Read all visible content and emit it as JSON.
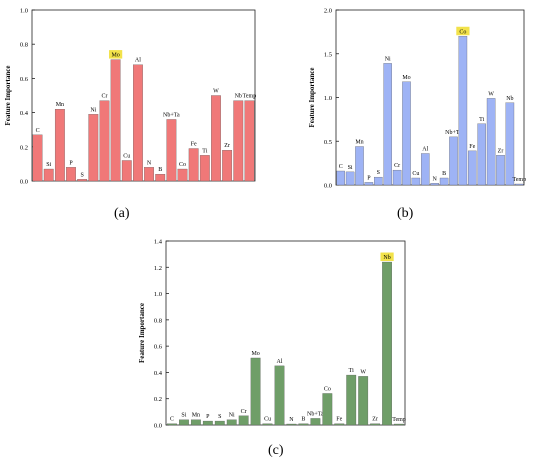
{
  "labels": {
    "a": "(a)",
    "b": "(b)",
    "c": "(c)"
  },
  "chart_data": [
    {
      "type": "bar",
      "panel": "a",
      "ylabel": "Feature Importance",
      "ylim": [
        0,
        1.0
      ],
      "yticks": [
        "0.0",
        "0.2",
        "0.4",
        "0.6",
        "0.8",
        "1.0"
      ],
      "bar_color": "#f07878",
      "highlight_color": "#f2e24a",
      "highlight": "Mo",
      "categories": [
        "C",
        "Si",
        "Mn",
        "P",
        "S",
        "Ni",
        "Cr",
        "Mo",
        "Cu",
        "Al",
        "N",
        "B",
        "Nb+Ta",
        "Co",
        "Fe",
        "Ti",
        "W",
        "Zr",
        "Nb",
        "Temp"
      ],
      "values": [
        0.27,
        0.07,
        0.42,
        0.08,
        0.01,
        0.39,
        0.47,
        0.71,
        0.12,
        0.68,
        0.08,
        0.04,
        0.36,
        0.07,
        0.19,
        0.15,
        0.5,
        0.18,
        0.47,
        0.47
      ]
    },
    {
      "type": "bar",
      "panel": "b",
      "ylabel": "Feature Importance",
      "ylim": [
        0,
        2.0
      ],
      "yticks": [
        "0.0",
        "0.5",
        "1.0",
        "1.5",
        "2.0"
      ],
      "bar_color": "#9eb3f5",
      "highlight_color": "#f2e24a",
      "highlight": "Co",
      "categories": [
        "C",
        "Si",
        "Mn",
        "P",
        "S",
        "Ni",
        "Cr",
        "Mo",
        "Cu",
        "Al",
        "N",
        "B",
        "Nb+Ta",
        "Co",
        "Fe",
        "Ti",
        "W",
        "Zr",
        "Nb",
        "Temp"
      ],
      "values": [
        0.16,
        0.15,
        0.44,
        0.03,
        0.09,
        1.39,
        0.17,
        1.18,
        0.08,
        0.36,
        0.02,
        0.08,
        0.55,
        1.7,
        0.39,
        0.7,
        0.99,
        0.34,
        0.94,
        0.01
      ]
    },
    {
      "type": "bar",
      "panel": "c",
      "ylabel": "Feature Importance",
      "ylim": [
        0,
        1.4
      ],
      "yticks": [
        "0.0",
        "0.2",
        "0.4",
        "0.6",
        "0.8",
        "1.0",
        "1.2",
        "1.4"
      ],
      "bar_color": "#6f9e68",
      "highlight_color": "#f2e24a",
      "highlight": "Nb",
      "categories": [
        "C",
        "Si",
        "Mn",
        "P",
        "S",
        "Ni",
        "Cr",
        "Mo",
        "Cu",
        "Al",
        "N",
        "B",
        "Nb+Ta",
        "Co",
        "Fe",
        "Ti",
        "W",
        "Zr",
        "Nb",
        "Temp"
      ],
      "values": [
        0.01,
        0.04,
        0.04,
        0.03,
        0.03,
        0.04,
        0.07,
        0.51,
        0.01,
        0.45,
        0.0,
        0.01,
        0.05,
        0.24,
        0.01,
        0.38,
        0.37,
        0.01,
        1.24,
        0.0
      ]
    }
  ]
}
